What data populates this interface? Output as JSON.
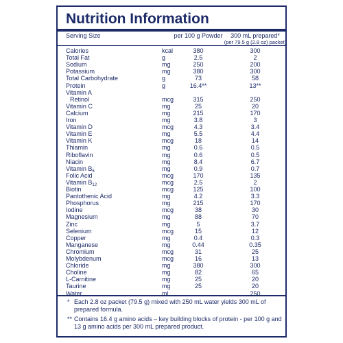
{
  "header": {
    "title": "Nutrition Information",
    "serving_label": "Serving Size",
    "col1": "per 100 g Powder",
    "col2": "300 mL prepared*",
    "col2_sub": "(per 79.5 g (2.8 oz) packet)"
  },
  "table": {
    "rows": [
      {
        "name": "Calories",
        "unit": "kcal",
        "per100g": "380",
        "per300ml": "300"
      },
      {
        "name": "Total Fat",
        "unit": "g",
        "per100g": "2.5",
        "per300ml": "2"
      },
      {
        "name": "Sodium",
        "unit": "mg",
        "per100g": "250",
        "per300ml": "200"
      },
      {
        "name": "Potassium",
        "unit": "mg",
        "per100g": "380",
        "per300ml": "300"
      },
      {
        "name": "Total Carbohydrate",
        "unit": "g",
        "per100g": "73",
        "per300ml": "58"
      },
      {
        "name": "Protein",
        "unit": "g",
        "per100g": "16.4**",
        "per300ml": "13**"
      },
      {
        "name": "Vitamin A"
      },
      {
        "name": "Retinol",
        "indent": true,
        "unit": "mcg",
        "per100g": "315",
        "per300ml": "250"
      },
      {
        "name": "Vitamin C",
        "unit": "mg",
        "per100g": "25",
        "per300ml": "20"
      },
      {
        "name": "Calcium",
        "unit": "mg",
        "per100g": "215",
        "per300ml": "170"
      },
      {
        "name": "Iron",
        "unit": "mg",
        "per100g": "3.8",
        "per300ml": "3"
      },
      {
        "name": "Vitamin D",
        "unit": "mcg",
        "per100g": "4.3",
        "per300ml": "3.4"
      },
      {
        "name": "Vitamin E",
        "unit": "mg",
        "per100g": "5.5",
        "per300ml": "4.4"
      },
      {
        "name": "Vitamin K",
        "unit": "mcg",
        "per100g": "18",
        "per300ml": "14"
      },
      {
        "name": "Thiamin",
        "unit": "mg",
        "per100g": "0.6",
        "per300ml": "0.5"
      },
      {
        "name": "Riboflavin",
        "unit": "mg",
        "per100g": "0.6",
        "per300ml": "0.5"
      },
      {
        "name": "Niacin",
        "unit": "mg",
        "per100g": "8.4",
        "per300ml": "6.7"
      },
      {
        "name": "Vitamin B",
        "sub": "6",
        "unit": "mg",
        "per100g": "0.9",
        "per300ml": "0.7"
      },
      {
        "name": "Folic Acid",
        "unit": "mcg",
        "per100g": "170",
        "per300ml": "135"
      },
      {
        "name": "Vitamin B",
        "sub": "12",
        "unit": "mcg",
        "per100g": "2.5",
        "per300ml": "2"
      },
      {
        "name": "Biotin",
        "unit": "mcg",
        "per100g": "125",
        "per300ml": "100"
      },
      {
        "name": "Pantothenic Acid",
        "unit": "mg",
        "per100g": "4.2",
        "per300ml": "3.3"
      },
      {
        "name": "Phosphorus",
        "unit": "mg",
        "per100g": "215",
        "per300ml": "170"
      },
      {
        "name": "Iodine",
        "unit": "mcg",
        "per100g": "38",
        "per300ml": "30"
      },
      {
        "name": "Magnesium",
        "unit": "mg",
        "per100g": "88",
        "per300ml": "70"
      },
      {
        "name": "Zinc",
        "unit": "mg",
        "per100g": "5",
        "per300ml": "3.7"
      },
      {
        "name": "Selenium",
        "unit": "mcg",
        "per100g": "15",
        "per300ml": "12"
      },
      {
        "name": "Copper",
        "unit": "mg",
        "per100g": "0.4",
        "per300ml": "0.3"
      },
      {
        "name": "Manganese",
        "unit": "mg",
        "per100g": "0.44",
        "per300ml": "0.35"
      },
      {
        "name": "Chromium",
        "unit": "mcg",
        "per100g": "31",
        "per300ml": "25"
      },
      {
        "name": "Molybdenum",
        "unit": "mcg",
        "per100g": "16",
        "per300ml": "13"
      },
      {
        "name": "Chloride",
        "unit": "mg",
        "per100g": "380",
        "per300ml": "300"
      },
      {
        "name": "Choline",
        "unit": "mg",
        "per100g": "82",
        "per300ml": "65"
      },
      {
        "name": "L-Carnitine",
        "unit": "mg",
        "per100g": "25",
        "per300ml": "20"
      },
      {
        "name": "Taurine",
        "unit": "mg",
        "per100g": "25",
        "per300ml": "20"
      },
      {
        "name": "Water",
        "unit": "ml",
        "per300ml": "250"
      }
    ]
  },
  "footnotes": [
    {
      "mark": "*",
      "text": "Each 2.8 oz packet (79.5 g) mixed with 250 mL water yields 300 mL of prepared formula."
    },
    {
      "mark": "**",
      "text": "Contains 16.4 g amino acids – key building blocks of protein - per 100 g and 13 g amino acids per 300 mL prepared product."
    }
  ]
}
